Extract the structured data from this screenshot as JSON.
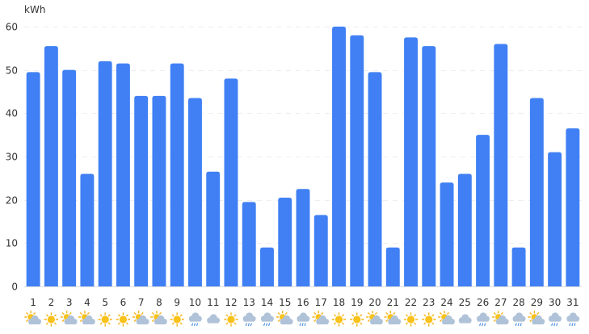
{
  "chart_data": {
    "type": "bar",
    "ylabel": "kWh",
    "ylim": [
      0,
      60
    ],
    "yticks": [
      0,
      10,
      20,
      30,
      40,
      50,
      60
    ],
    "grid": true,
    "bar_color": "#4080F4",
    "categories": [
      "1",
      "2",
      "3",
      "4",
      "5",
      "6",
      "7",
      "8",
      "9",
      "10",
      "11",
      "12",
      "13",
      "14",
      "15",
      "16",
      "17",
      "18",
      "19",
      "20",
      "21",
      "22",
      "23",
      "24",
      "25",
      "26",
      "27",
      "28",
      "29",
      "30",
      "31"
    ],
    "values": [
      49.5,
      55.5,
      50,
      26,
      52,
      51.5,
      44,
      44,
      51.5,
      43.5,
      26.5,
      48,
      19.5,
      9,
      20.5,
      22.5,
      16.5,
      60,
      58,
      49.5,
      9,
      57.5,
      55.5,
      24,
      26,
      35,
      56,
      9,
      43.5,
      31,
      36.5
    ],
    "weather": [
      "partly-cloudy",
      "sunny",
      "partly-cloudy",
      "partly-cloudy",
      "sunny",
      "sunny",
      "partly-cloudy",
      "partly-cloudy",
      "sunny",
      "rainy",
      "cloudy",
      "sunny",
      "rainy",
      "rainy",
      "partly-cloudy",
      "rainy",
      "partly-cloudy",
      "sunny",
      "sunny",
      "partly-cloudy",
      "partly-cloudy",
      "sunny",
      "sunny",
      "partly-cloudy",
      "cloudy",
      "rainy",
      "partly-cloudy",
      "rainy",
      "partly-cloudy",
      "rainy",
      "rainy"
    ]
  }
}
